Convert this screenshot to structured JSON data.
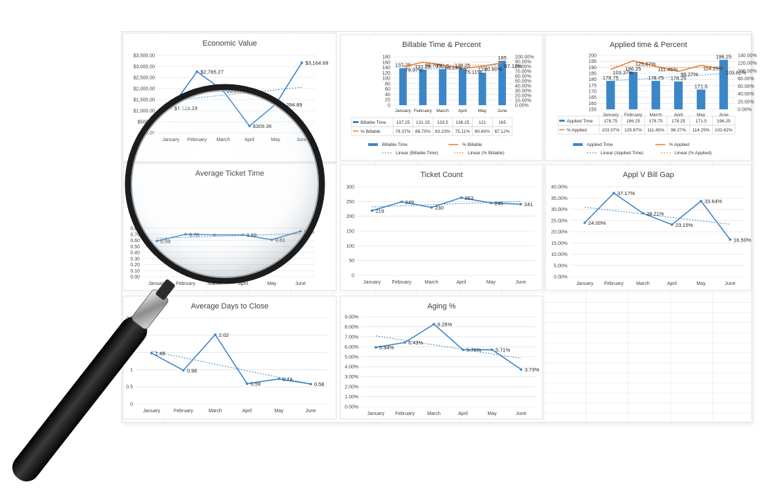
{
  "colors": {
    "blue": "#3b86c8",
    "orange": "#e8782a",
    "grid": "#d9d9d9",
    "cell": "#e2e2e2",
    "text": "#404040"
  },
  "chart_data": [
    {
      "id": "economic-value",
      "type": "line",
      "title": "Economic Value",
      "categories": [
        "January",
        "February",
        "March",
        "April",
        "May",
        "June"
      ],
      "values": [
        1125.19,
        2765.27,
        1901.55,
        309.36,
        1284.89,
        3164.69
      ],
      "data_labels": [
        "$1,125.19",
        "$2,765.27",
        "$1,901.55",
        "$309.36",
        "$1,284.89",
        "$3,164.69"
      ],
      "y_ticks": [
        "$0.00",
        "$500.00",
        "$1,000.00",
        "$1,500.00",
        "$2,000.00",
        "$2,500.00",
        "$3,000.00",
        "$3,500.00"
      ],
      "ylim": [
        0,
        3500
      ],
      "trendline": true
    },
    {
      "id": "billable-time-percent",
      "type": "bar",
      "title": "Billable Time & Percent",
      "categories": [
        "January",
        "February",
        "March",
        "April",
        "May",
        "June"
      ],
      "series": [
        {
          "name": "Billable Time",
          "values": [
            137.25,
            131.25,
            133.5,
            136.25,
            121,
            165
          ],
          "labels": [
            "137.25",
            "131.25",
            "133.5",
            "136.25",
            "121",
            "165"
          ]
        },
        {
          "name": "% Billable",
          "values": [
            79.37,
            88.7,
            83.23,
            75.11,
            80.6,
            87.12
          ],
          "labels": [
            "79.37%",
            "88.70%",
            "83.23%",
            "75.11%",
            "80.60%",
            "87.12%"
          ]
        }
      ],
      "y_ticks": [
        "0",
        "20",
        "40",
        "60",
        "80",
        "100",
        "120",
        "140",
        "160",
        "180"
      ],
      "y2_ticks": [
        "0.00%",
        "10.00%",
        "20.00%",
        "30.00%",
        "40.00%",
        "50.00%",
        "60.00%",
        "70.00%",
        "80.00%",
        "90.00%",
        "100.00%"
      ],
      "ylim": [
        0,
        180
      ],
      "y2lim": [
        0,
        100
      ],
      "legend": [
        "Billable Time",
        "% Billable",
        "Linear (Billable Time)",
        "Linear (% Billable)"
      ]
    },
    {
      "id": "applied-time-percent",
      "type": "bar",
      "title": "Applied time & Percent",
      "categories": [
        "January",
        "February",
        "March",
        "April",
        "May",
        "June"
      ],
      "series": [
        {
          "name": "Applied Time",
          "values": [
            178.75,
            186.25,
            178.75,
            178.25,
            171.5,
            196.25
          ],
          "labels": [
            "178.75",
            "186.25",
            "178.75",
            "178.25",
            "171.5",
            "196.25"
          ]
        },
        {
          "name": "% Applied",
          "values": [
            103.37,
            125.87,
            111.45,
            98.27,
            114.25,
            103.62
          ],
          "labels": [
            "103.37%",
            "125.87%",
            "111.45%",
            "98.27%",
            "114.25%",
            "103.62%"
          ]
        }
      ],
      "y_ticks": [
        "155",
        "160",
        "165",
        "170",
        "175",
        "180",
        "185",
        "190",
        "195",
        "200"
      ],
      "y2_ticks": [
        "0.00%",
        "20.00%",
        "40.00%",
        "60.00%",
        "80.00%",
        "100.00%",
        "120.00%",
        "140.00%"
      ],
      "ylim": [
        155,
        200
      ],
      "y2lim": [
        0,
        140
      ],
      "legend": [
        "Applied Time",
        "% Applied",
        "Linear (Applied Time)",
        "Linear (% Applied)"
      ]
    },
    {
      "id": "average-ticket-time",
      "type": "line",
      "title": "Average Ticket Time",
      "categories": [
        "January",
        "February",
        "March",
        "April",
        "May",
        "June"
      ],
      "values": [
        0.59,
        0.7,
        0.69,
        0.69,
        0.61,
        0.75
      ],
      "data_labels": [
        "0.59",
        "0.70",
        "",
        "0.69",
        "0.61",
        "0.75"
      ],
      "y_ticks": [
        "0.00",
        "0.10",
        "0.20",
        "0.30",
        "0.40",
        "0.50",
        "0.60",
        "0.70",
        "0.80"
      ],
      "ylim": [
        0,
        0.8
      ],
      "trendline": true
    },
    {
      "id": "ticket-count",
      "type": "line",
      "title": "Ticket Count",
      "categories": [
        "January",
        "February",
        "March",
        "April",
        "May",
        "June"
      ],
      "values": [
        219,
        249,
        230,
        263,
        245,
        241
      ],
      "data_labels": [
        "219",
        "249",
        "230",
        "263",
        "245",
        "241"
      ],
      "y_ticks": [
        "0",
        "50",
        "100",
        "150",
        "200",
        "250",
        "300"
      ],
      "ylim": [
        0,
        300
      ],
      "trendline": true
    },
    {
      "id": "appl-v-bill-gap",
      "type": "line",
      "title": "Appl V Bill Gap",
      "categories": [
        "January",
        "February",
        "March",
        "April",
        "May",
        "June"
      ],
      "values": [
        24.0,
        37.17,
        28.21,
        23.15,
        33.64,
        16.5
      ],
      "data_labels": [
        "24.00%",
        "37.17%",
        "28.21%",
        "23.15%",
        "33.64%",
        "16.50%"
      ],
      "y_ticks": [
        "0.00%",
        "5.00%",
        "10.00%",
        "15.00%",
        "20.00%",
        "25.00%",
        "30.00%",
        "35.00%",
        "40.00%"
      ],
      "ylim": [
        0,
        40
      ],
      "trendline": true
    },
    {
      "id": "average-days-to-close",
      "type": "line",
      "title": "Average Days to Close",
      "categories": [
        "January",
        "February",
        "March",
        "April",
        "May",
        "June"
      ],
      "values": [
        1.48,
        0.98,
        2.02,
        0.59,
        0.73,
        0.58
      ],
      "data_labels": [
        "1.48",
        "0.98",
        "2.02",
        "0.59",
        "0.73",
        "0.58"
      ],
      "y_ticks": [
        "0",
        "0.5",
        "1",
        "1.5",
        "2",
        "2.5"
      ],
      "ylim": [
        0,
        2.5
      ],
      "trendline": true
    },
    {
      "id": "aging-percent",
      "type": "line",
      "title": "Aging %",
      "categories": [
        "January",
        "February",
        "March",
        "April",
        "May",
        "June"
      ],
      "values": [
        5.94,
        6.43,
        8.26,
        5.7,
        5.71,
        3.73
      ],
      "data_labels": [
        "5.94%",
        "6.43%",
        "8.26%",
        "5.70%",
        "5.71%",
        "3.73%"
      ],
      "y_ticks": [
        "0.00%",
        "1.00%",
        "2.00%",
        "3.00%",
        "4.00%",
        "5.00%",
        "6.00%",
        "7.00%",
        "8.00%",
        "9.00%"
      ],
      "ylim": [
        0,
        9
      ],
      "trendline": true
    }
  ]
}
